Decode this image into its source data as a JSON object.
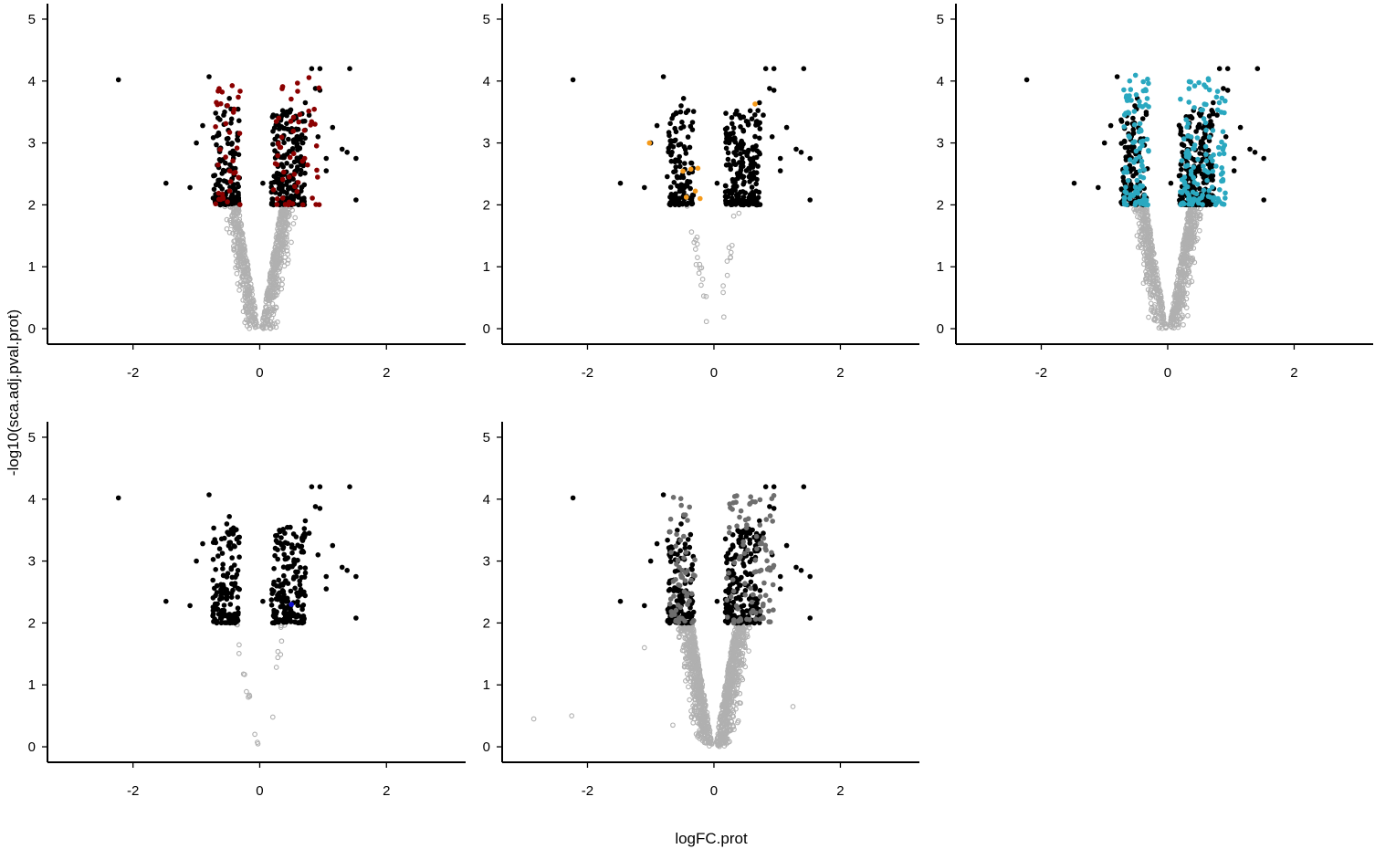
{
  "chart_data": [
    {
      "type": "scatter",
      "panel": 1,
      "xlabel": "logFC.prot",
      "ylabel": "-log10(sca.adj.pval.prot)",
      "xlim": [
        -3.35,
        3.25
      ],
      "ylim": [
        -0.25,
        5.25
      ],
      "xticks": [
        -2,
        0,
        2
      ],
      "yticks": [
        0,
        1,
        2,
        3,
        4,
        5
      ],
      "grid": false,
      "legend": "none",
      "highlight_color": "#8b0000",
      "highlight_count": 90,
      "base_color": "#000000",
      "nonsig_color": "#b0b0b0",
      "ns_count": 700,
      "ns_spread": 1.0,
      "ns_extreme": false,
      "seed": 11
    },
    {
      "type": "scatter",
      "panel": 2,
      "xlabel": "logFC.prot",
      "ylabel": "-log10(sca.adj.pval.prot)",
      "xlim": [
        -3.35,
        3.25
      ],
      "ylim": [
        -0.25,
        5.25
      ],
      "xticks": [
        -2,
        0,
        2
      ],
      "yticks": [
        0,
        1,
        2,
        3,
        4,
        5
      ],
      "grid": false,
      "legend": "none",
      "highlight_color": "#f59a1a",
      "highlight_count": 8,
      "base_color": "#000000",
      "nonsig_color": "#b0b0b0",
      "ns_count": 30,
      "ns_spread": 0.55,
      "ns_extreme": false,
      "seed": 23
    },
    {
      "type": "scatter",
      "panel": 3,
      "xlabel": "logFC.prot",
      "ylabel": "-log10(sca.adj.pval.prot)",
      "xlim": [
        -3.35,
        3.25
      ],
      "ylim": [
        -0.25,
        5.25
      ],
      "xticks": [
        -2,
        0,
        2
      ],
      "yticks": [
        0,
        1,
        2,
        3,
        4,
        5
      ],
      "grid": false,
      "legend": "none",
      "highlight_color": "#2aa8c0",
      "highlight_count": 230,
      "base_color": "#000000",
      "nonsig_color": "#b0b0b0",
      "ns_count": 800,
      "ns_spread": 1.0,
      "ns_extreme": false,
      "seed": 37
    },
    {
      "type": "scatter",
      "panel": 4,
      "xlabel": "logFC.prot",
      "ylabel": "-log10(sca.adj.pval.prot)",
      "xlim": [
        -3.35,
        3.25
      ],
      "ylim": [
        -0.25,
        5.25
      ],
      "xticks": [
        -2,
        0,
        2
      ],
      "yticks": [
        0,
        1,
        2,
        3,
        4,
        5
      ],
      "grid": false,
      "legend": "none",
      "highlight_color": "#1010d0",
      "highlight_count": 1,
      "base_color": "#000000",
      "nonsig_color": "#b0b0b0",
      "ns_count": 22,
      "ns_spread": 0.5,
      "ns_extreme": false,
      "seed": 41
    },
    {
      "type": "scatter",
      "panel": 5,
      "xlabel": "logFC.prot",
      "ylabel": "-log10(sca.adj.pval.prot)",
      "xlim": [
        -3.35,
        3.25
      ],
      "ylim": [
        -0.25,
        5.25
      ],
      "xticks": [
        -2,
        0,
        2
      ],
      "yticks": [
        0,
        1,
        2,
        3,
        4,
        5
      ],
      "grid": false,
      "legend": "none",
      "highlight_color": "#6e6e6e",
      "highlight_count": 160,
      "base_color": "#000000",
      "nonsig_color": "#b0b0b0",
      "ns_count": 1100,
      "ns_spread": 1.15,
      "ns_extreme": true,
      "seed": 53
    }
  ],
  "significant_points": [
    [
      -2.23,
      4.02
    ],
    [
      -0.8,
      4.07
    ],
    [
      1.42,
      4.2
    ],
    [
      0.95,
      4.2
    ],
    [
      0.82,
      4.2
    ],
    [
      -0.48,
      3.72
    ],
    [
      -0.52,
      3.6
    ],
    [
      0.72,
      3.65
    ],
    [
      0.88,
      3.88
    ],
    [
      0.95,
      3.85
    ],
    [
      -1.0,
      3.0
    ],
    [
      -0.9,
      3.28
    ],
    [
      1.15,
      3.25
    ],
    [
      1.3,
      2.9
    ],
    [
      1.38,
      2.85
    ],
    [
      1.52,
      2.75
    ],
    [
      1.52,
      2.08
    ],
    [
      -1.48,
      2.35
    ],
    [
      -1.1,
      2.28
    ],
    [
      0.05,
      2.35
    ],
    [
      0.68,
      3.35
    ],
    [
      0.78,
      3.45
    ],
    [
      0.92,
      3.1
    ],
    [
      1.05,
      2.75
    ],
    [
      1.05,
      2.55
    ]
  ],
  "labels": {
    "xlabel": "logFC.prot",
    "ylabel": "-log10(sca.adj.pval.prot)"
  }
}
